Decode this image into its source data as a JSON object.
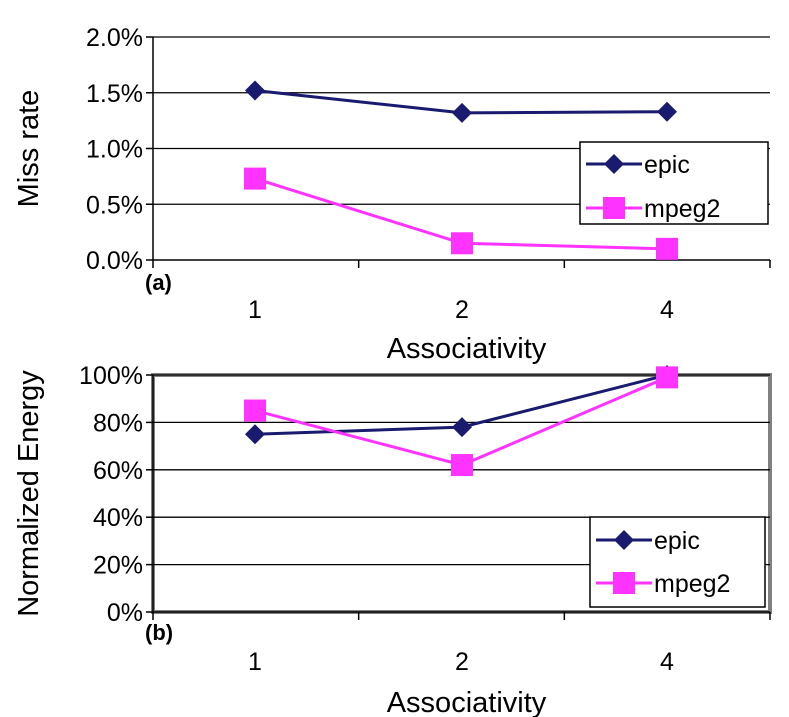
{
  "chart_data": [
    {
      "type": "line",
      "panel_label": "(a)",
      "categories": [
        "1",
        "2",
        "4"
      ],
      "series": [
        {
          "name": "epic",
          "values": [
            1.52,
            1.32,
            1.33
          ],
          "color": "#1a1a6e",
          "marker": "diamond"
        },
        {
          "name": "mpeg2",
          "values": [
            0.73,
            0.15,
            0.1
          ],
          "color": "#ff33ff",
          "marker": "square"
        }
      ],
      "yticks": [
        "0.0%",
        "0.5%",
        "1.0%",
        "1.5%",
        "2.0%"
      ],
      "ytick_values": [
        0,
        0.5,
        1.0,
        1.5,
        2.0
      ],
      "ylim": [
        0,
        2.0
      ],
      "xlabel": "Associativity",
      "ylabel": "Miss rate",
      "grid": true,
      "legend_position": "right"
    },
    {
      "type": "line",
      "panel_label": "(b)",
      "categories": [
        "1",
        "2",
        "4"
      ],
      "series": [
        {
          "name": "epic",
          "values": [
            75,
            78,
            100
          ],
          "color": "#1a1a6e",
          "marker": "diamond"
        },
        {
          "name": "mpeg2",
          "values": [
            85,
            62,
            99
          ],
          "color": "#ff33ff",
          "marker": "square"
        }
      ],
      "yticks": [
        "0%",
        "20%",
        "40%",
        "60%",
        "80%",
        "100%"
      ],
      "ytick_values": [
        0,
        20,
        40,
        60,
        80,
        100
      ],
      "ylim": [
        0,
        100
      ],
      "xlabel": "Associativity",
      "ylabel": "Normalized Energy",
      "grid": true,
      "legend_position": "bottom-right"
    }
  ]
}
